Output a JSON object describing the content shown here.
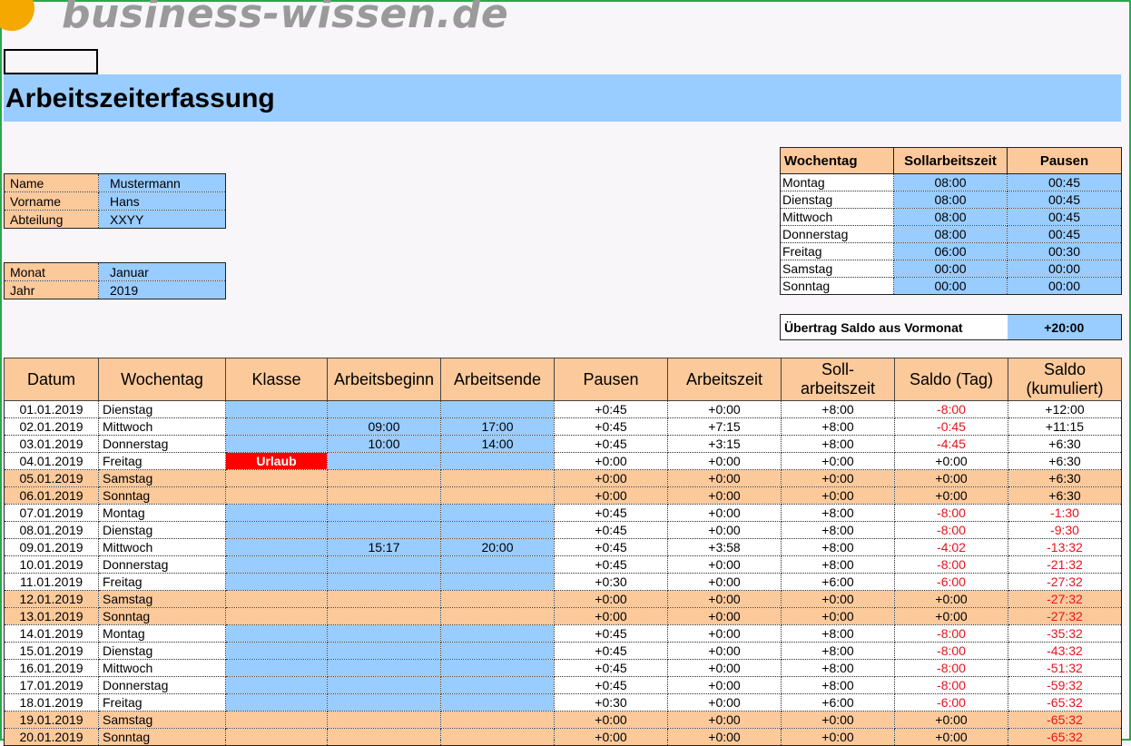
{
  "logo": {
    "text": "business-wissen.de"
  },
  "page_title": "Arbeitszeiterfassung",
  "person": [
    {
      "label": "Name",
      "value": "Mustermann"
    },
    {
      "label": "Vorname",
      "value": "Hans"
    },
    {
      "label": "Abteilung",
      "value": "XXYY"
    }
  ],
  "period": [
    {
      "label": "Monat",
      "value": "Januar"
    },
    {
      "label": "Jahr",
      "value": "2019"
    }
  ],
  "week_table": {
    "headers": [
      "Wochentag",
      "Sollarbeitszeit",
      "Pausen"
    ],
    "rows": [
      {
        "day": "Montag",
        "soll": "08:00",
        "pause": "00:45"
      },
      {
        "day": "Dienstag",
        "soll": "08:00",
        "pause": "00:45"
      },
      {
        "day": "Mittwoch",
        "soll": "08:00",
        "pause": "00:45"
      },
      {
        "day": "Donnerstag",
        "soll": "08:00",
        "pause": "00:45"
      },
      {
        "day": "Freitag",
        "soll": "06:00",
        "pause": "00:30"
      },
      {
        "day": "Samstag",
        "soll": "00:00",
        "pause": "00:00"
      },
      {
        "day": "Sonntag",
        "soll": "00:00",
        "pause": "00:00"
      }
    ]
  },
  "carry_over": {
    "label": "Übertrag Saldo aus Vormonat",
    "value": "+20:00"
  },
  "main_table": {
    "headers": [
      "Datum",
      "Wochentag",
      "Klasse",
      "Arbeitsbeginn",
      "Arbeitsende",
      "Pausen",
      "Arbeitszeit",
      "Soll-\narbeitszeit",
      "Saldo (Tag)",
      "Saldo\n(kumuliert)"
    ],
    "rows": [
      {
        "date": "01.01.2019",
        "day": "Dienstag",
        "klasse": "",
        "begin": "",
        "end": "",
        "pause": "+0:45",
        "work": "+0:00",
        "soll": "+8:00",
        "saldo": "-8:00",
        "cum": "+12:00",
        "weekend": false
      },
      {
        "date": "02.01.2019",
        "day": "Mittwoch",
        "klasse": "",
        "begin": "09:00",
        "end": "17:00",
        "pause": "+0:45",
        "work": "+7:15",
        "soll": "+8:00",
        "saldo": "-0:45",
        "cum": "+11:15",
        "weekend": false
      },
      {
        "date": "03.01.2019",
        "day": "Donnerstag",
        "klasse": "",
        "begin": "10:00",
        "end": "14:00",
        "pause": "+0:45",
        "work": "+3:15",
        "soll": "+8:00",
        "saldo": "-4:45",
        "cum": "+6:30",
        "weekend": false
      },
      {
        "date": "04.01.2019",
        "day": "Freitag",
        "klasse": "Urlaub",
        "begin": "",
        "end": "",
        "pause": "+0:00",
        "work": "+0:00",
        "soll": "+0:00",
        "saldo": "+0:00",
        "cum": "+6:30",
        "weekend": false
      },
      {
        "date": "05.01.2019",
        "day": "Samstag",
        "klasse": "",
        "begin": "",
        "end": "",
        "pause": "+0:00",
        "work": "+0:00",
        "soll": "+0:00",
        "saldo": "+0:00",
        "cum": "+6:30",
        "weekend": true
      },
      {
        "date": "06.01.2019",
        "day": "Sonntag",
        "klasse": "",
        "begin": "",
        "end": "",
        "pause": "+0:00",
        "work": "+0:00",
        "soll": "+0:00",
        "saldo": "+0:00",
        "cum": "+6:30",
        "weekend": true
      },
      {
        "date": "07.01.2019",
        "day": "Montag",
        "klasse": "",
        "begin": "",
        "end": "",
        "pause": "+0:45",
        "work": "+0:00",
        "soll": "+8:00",
        "saldo": "-8:00",
        "cum": "-1:30",
        "weekend": false
      },
      {
        "date": "08.01.2019",
        "day": "Dienstag",
        "klasse": "",
        "begin": "",
        "end": "",
        "pause": "+0:45",
        "work": "+0:00",
        "soll": "+8:00",
        "saldo": "-8:00",
        "cum": "-9:30",
        "weekend": false
      },
      {
        "date": "09.01.2019",
        "day": "Mittwoch",
        "klasse": "",
        "begin": "15:17",
        "end": "20:00",
        "pause": "+0:45",
        "work": "+3:58",
        "soll": "+8:00",
        "saldo": "-4:02",
        "cum": "-13:32",
        "weekend": false
      },
      {
        "date": "10.01.2019",
        "day": "Donnerstag",
        "klasse": "",
        "begin": "",
        "end": "",
        "pause": "+0:45",
        "work": "+0:00",
        "soll": "+8:00",
        "saldo": "-8:00",
        "cum": "-21:32",
        "weekend": false
      },
      {
        "date": "11.01.2019",
        "day": "Freitag",
        "klasse": "",
        "begin": "",
        "end": "",
        "pause": "+0:30",
        "work": "+0:00",
        "soll": "+6:00",
        "saldo": "-6:00",
        "cum": "-27:32",
        "weekend": false
      },
      {
        "date": "12.01.2019",
        "day": "Samstag",
        "klasse": "",
        "begin": "",
        "end": "",
        "pause": "+0:00",
        "work": "+0:00",
        "soll": "+0:00",
        "saldo": "+0:00",
        "cum": "-27:32",
        "weekend": true
      },
      {
        "date": "13.01.2019",
        "day": "Sonntag",
        "klasse": "",
        "begin": "",
        "end": "",
        "pause": "+0:00",
        "work": "+0:00",
        "soll": "+0:00",
        "saldo": "+0:00",
        "cum": "-27:32",
        "weekend": true
      },
      {
        "date": "14.01.2019",
        "day": "Montag",
        "klasse": "",
        "begin": "",
        "end": "",
        "pause": "+0:45",
        "work": "+0:00",
        "soll": "+8:00",
        "saldo": "-8:00",
        "cum": "-35:32",
        "weekend": false
      },
      {
        "date": "15.01.2019",
        "day": "Dienstag",
        "klasse": "",
        "begin": "",
        "end": "",
        "pause": "+0:45",
        "work": "+0:00",
        "soll": "+8:00",
        "saldo": "-8:00",
        "cum": "-43:32",
        "weekend": false
      },
      {
        "date": "16.01.2019",
        "day": "Mittwoch",
        "klasse": "",
        "begin": "",
        "end": "",
        "pause": "+0:45",
        "work": "+0:00",
        "soll": "+8:00",
        "saldo": "-8:00",
        "cum": "-51:32",
        "weekend": false
      },
      {
        "date": "17.01.2019",
        "day": "Donnerstag",
        "klasse": "",
        "begin": "",
        "end": "",
        "pause": "+0:45",
        "work": "+0:00",
        "soll": "+8:00",
        "saldo": "-8:00",
        "cum": "-59:32",
        "weekend": false
      },
      {
        "date": "18.01.2019",
        "day": "Freitag",
        "klasse": "",
        "begin": "",
        "end": "",
        "pause": "+0:30",
        "work": "+0:00",
        "soll": "+6:00",
        "saldo": "-6:00",
        "cum": "-65:32",
        "weekend": false
      },
      {
        "date": "19.01.2019",
        "day": "Samstag",
        "klasse": "",
        "begin": "",
        "end": "",
        "pause": "+0:00",
        "work": "+0:00",
        "soll": "+0:00",
        "saldo": "+0:00",
        "cum": "-65:32",
        "weekend": true
      },
      {
        "date": "20.01.2019",
        "day": "Sonntag",
        "klasse": "",
        "begin": "",
        "end": "",
        "pause": "+0:00",
        "work": "+0:00",
        "soll": "+0:00",
        "saldo": "+0:00",
        "cum": "-65:32",
        "weekend": true
      }
    ]
  },
  "colors": {
    "header_orange": "#fcc99a",
    "input_blue": "#99ccff",
    "negative_red": "#e6141e",
    "urlaub_red": "#ff0000",
    "logo_orange": "#f5a800"
  }
}
